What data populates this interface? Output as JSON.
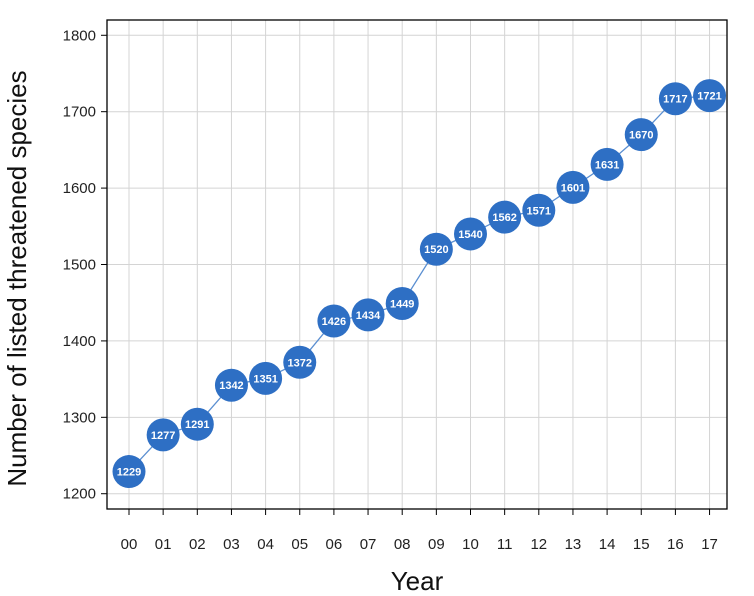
{
  "chart_data": {
    "type": "line",
    "xlabel": "Year",
    "ylabel": "Number of listed threatened species",
    "categories": [
      "00",
      "01",
      "02",
      "03",
      "04",
      "05",
      "06",
      "07",
      "08",
      "09",
      "10",
      "11",
      "12",
      "13",
      "14",
      "15",
      "16",
      "17"
    ],
    "series": [
      {
        "values": [
          1229,
          1277,
          1291,
          1342,
          1351,
          1372,
          1426,
          1434,
          1449,
          1520,
          1540,
          1562,
          1571,
          1601,
          1631,
          1670,
          1717,
          1721
        ]
      }
    ],
    "ylim": [
      1180,
      1820
    ],
    "yticks": [
      1200,
      1300,
      1400,
      1500,
      1600,
      1700,
      1800
    ],
    "grid": true,
    "point_labels": true,
    "colors": {
      "marker": "#2e6fc4",
      "line": "#5b8fd1",
      "grid": "#d4d4d4",
      "frame": "#000000"
    }
  }
}
